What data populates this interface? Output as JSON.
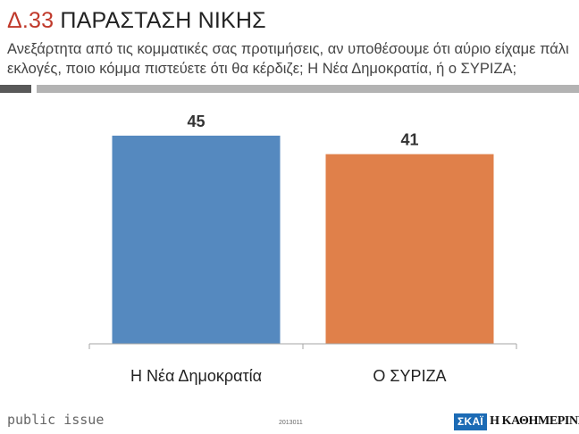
{
  "header": {
    "code": "Δ.33",
    "title": "ΠΑΡΑΣΤΑΣΗ ΝΙΚΗΣ",
    "question": "Ανεξάρτητα από τις κομματικές σας προτιμήσεις, αν υποθέσουμε ότι αύριο είχαμε πάλι εκλογές, ποιο κόμμα πιστεύετε ότι θα κέρδιζε; Η Νέα Δημοκρατία, ή ο ΣΥΡΙΖΑ;"
  },
  "chart_data": {
    "type": "bar",
    "categories": [
      "Η Νέα Δημοκρατία",
      "Ο ΣΥΡΙΖΑ"
    ],
    "values": [
      45,
      41
    ],
    "colors": [
      "#5589bf",
      "#e0804a"
    ],
    "ylim": [
      0,
      50
    ],
    "grid": false,
    "legend": "none"
  },
  "footer": {
    "brand": "public issue",
    "code": "2013011",
    "logo_skai": "ΣΚΑΪ",
    "logo_kathimerini": "Η ΚΑΘΗΜΕΡΙΝΗ"
  }
}
